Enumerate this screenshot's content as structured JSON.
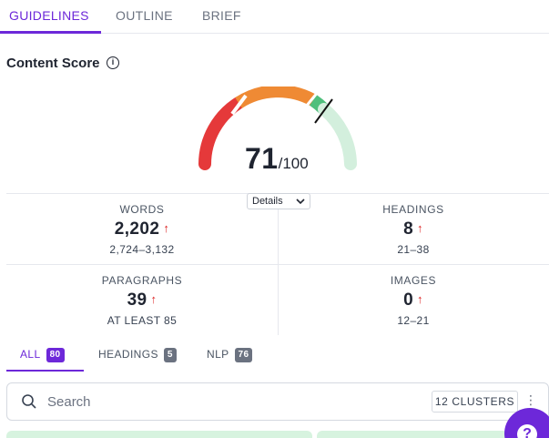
{
  "top_tabs": [
    {
      "label": "GUIDELINES",
      "active": true
    },
    {
      "label": "OUTLINE",
      "active": false
    },
    {
      "label": "BRIEF",
      "active": false
    }
  ],
  "content_score": {
    "title": "Content Score",
    "info_icon": "info-circle-icon",
    "score": "71",
    "max": "/100",
    "score_fraction": 0.71,
    "details_label": "Details",
    "gauge_colors": {
      "low": "#e5393a",
      "mid": "#ef8a34",
      "good": "#4fbf7c",
      "remaining": "#d3efdd",
      "marker": "#111111"
    }
  },
  "stats": [
    {
      "label": "WORDS",
      "value": "2,202",
      "range": "2,724–3,132",
      "trend": "↑"
    },
    {
      "label": "HEADINGS",
      "value": "8",
      "range": "21–38",
      "trend": "↑"
    },
    {
      "label": "PARAGRAPHS",
      "value": "39",
      "range": "AT LEAST 85",
      "trend": "↑"
    },
    {
      "label": "IMAGES",
      "value": "0",
      "range": "12–21",
      "trend": "↑"
    }
  ],
  "filter_tabs": [
    {
      "label": "ALL",
      "count": "80",
      "active": true
    },
    {
      "label": "HEADINGS",
      "count": "5",
      "active": false
    },
    {
      "label": "NLP",
      "count": "76",
      "active": false
    }
  ],
  "search": {
    "placeholder": "Search",
    "value": "",
    "clusters_label": "12 CLUSTERS"
  },
  "help": {
    "label": "?"
  },
  "colors": {
    "accent": "#6d28d9",
    "trend_up": "#dc2626"
  }
}
